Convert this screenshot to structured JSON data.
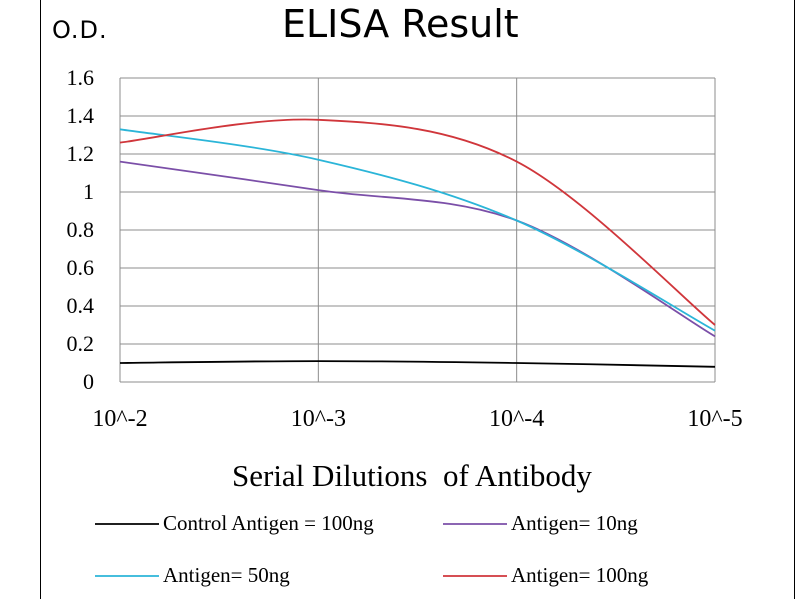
{
  "chart_data": {
    "type": "line",
    "title": "ELISA Result",
    "ylabel": "O.D.",
    "xlabel": "Serial Dilutions  of Antibody",
    "categories": [
      "10^-2",
      "10^-3",
      "10^-4",
      "10^-5"
    ],
    "ylim": [
      0,
      1.6
    ],
    "yticks": [
      "0",
      "0.2",
      "0.4",
      "0.6",
      "0.8",
      "1",
      "1.2",
      "1.4",
      "1.6"
    ],
    "grid": true,
    "legend_position": "bottom",
    "series": [
      {
        "name": "Control Antigen = 100ng",
        "color": "#000000",
        "values": [
          0.1,
          0.11,
          0.1,
          0.08
        ]
      },
      {
        "name": "Antigen= 10ng",
        "color": "#7B4FA8",
        "values": [
          1.16,
          1.01,
          0.85,
          0.24
        ]
      },
      {
        "name": "Antigen= 50ng",
        "color": "#2BB5D8",
        "values": [
          1.33,
          1.17,
          0.85,
          0.27
        ]
      },
      {
        "name": "Antigen= 100ng",
        "color": "#D0363B",
        "values": [
          1.26,
          1.38,
          1.16,
          0.3
        ]
      }
    ]
  }
}
